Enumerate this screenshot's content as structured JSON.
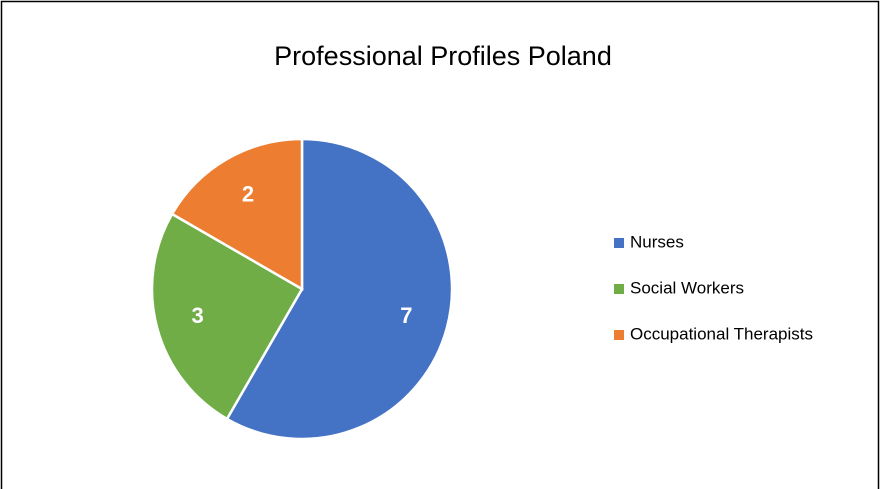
{
  "chart_data": {
    "type": "pie",
    "title": "Professional Profiles Poland",
    "categories": [
      "Nurses",
      "Social Workers",
      "Occupational Therapists"
    ],
    "values": [
      7,
      3,
      2
    ],
    "colors": [
      "#4472c4",
      "#70ad47",
      "#ed7d31"
    ],
    "legend": "right"
  }
}
